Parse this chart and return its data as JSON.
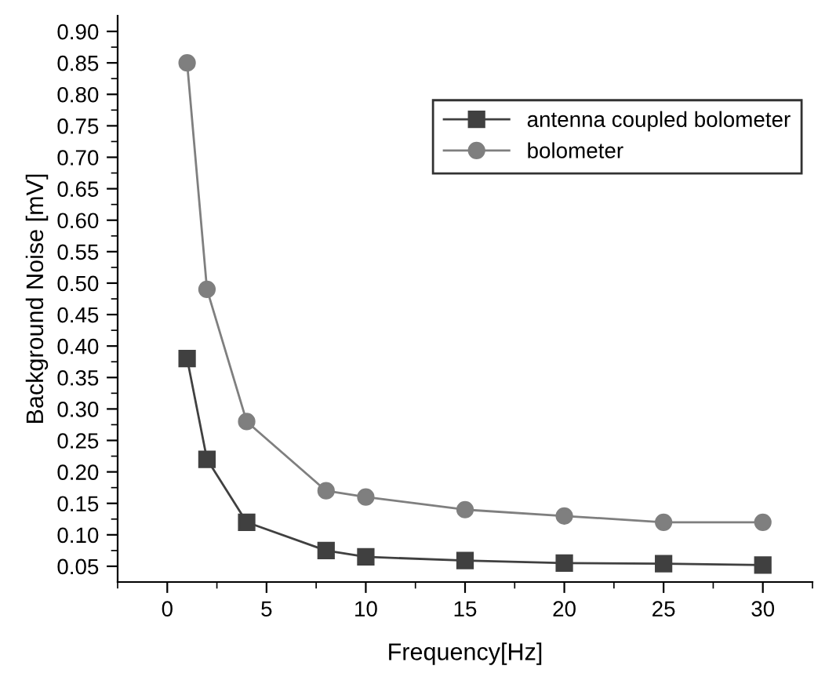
{
  "chart_data": {
    "type": "line",
    "xlabel": "Frequency[Hz]",
    "ylabel": "Background Noise [mV]",
    "xlim": [
      -2.5,
      32.5
    ],
    "ylim": [
      0.025,
      0.925
    ],
    "xticks": [
      {
        "value": -2.5,
        "label": null
      },
      0,
      {
        "value": 2.5,
        "label": null
      },
      5,
      {
        "value": 7.5,
        "label": null
      },
      10,
      {
        "value": 12.5,
        "label": null
      },
      15,
      {
        "value": 17.5,
        "label": null
      },
      20,
      {
        "value": 22.5,
        "label": null
      },
      25,
      {
        "value": 27.5,
        "label": null
      },
      30,
      {
        "value": 32.5,
        "label": null
      }
    ],
    "yticks": [
      {
        "value": 0.05,
        "label": "0.05"
      },
      {
        "value": 0.075,
        "label": null
      },
      {
        "value": 0.1,
        "label": "0.10"
      },
      {
        "value": 0.125,
        "label": null
      },
      {
        "value": 0.15,
        "label": "0.15"
      },
      {
        "value": 0.175,
        "label": null
      },
      {
        "value": 0.2,
        "label": "0.20"
      },
      {
        "value": 0.225,
        "label": null
      },
      {
        "value": 0.25,
        "label": "0.25"
      },
      {
        "value": 0.275,
        "label": null
      },
      {
        "value": 0.3,
        "label": "0.30"
      },
      {
        "value": 0.325,
        "label": null
      },
      {
        "value": 0.35,
        "label": "0.35"
      },
      {
        "value": 0.375,
        "label": null
      },
      {
        "value": 0.4,
        "label": "0.40"
      },
      {
        "value": 0.425,
        "label": null
      },
      {
        "value": 0.45,
        "label": "0.45"
      },
      {
        "value": 0.475,
        "label": null
      },
      {
        "value": 0.5,
        "label": "0.50"
      },
      {
        "value": 0.525,
        "label": null
      },
      {
        "value": 0.55,
        "label": "0.55"
      },
      {
        "value": 0.575,
        "label": null
      },
      {
        "value": 0.6,
        "label": "0.60"
      },
      {
        "value": 0.625,
        "label": null
      },
      {
        "value": 0.65,
        "label": "0.65"
      },
      {
        "value": 0.675,
        "label": null
      },
      {
        "value": 0.7,
        "label": "0.70"
      },
      {
        "value": 0.725,
        "label": null
      },
      {
        "value": 0.75,
        "label": "0.75"
      },
      {
        "value": 0.775,
        "label": null
      },
      {
        "value": 0.8,
        "label": "0.80"
      },
      {
        "value": 0.825,
        "label": null
      },
      {
        "value": 0.85,
        "label": "0.85"
      },
      {
        "value": 0.875,
        "label": null
      },
      {
        "value": 0.9,
        "label": "0.90"
      }
    ],
    "x": [
      1,
      2,
      4,
      8,
      10,
      15,
      20,
      25,
      30
    ],
    "series": [
      {
        "name": "antenna coupled bolometer",
        "color": "#404040",
        "marker": "square",
        "values": [
          0.38,
          0.22,
          0.12,
          0.075,
          0.065,
          0.059,
          0.055,
          0.054,
          0.052
        ]
      },
      {
        "name": "bolometer",
        "color": "#7f7f7f",
        "marker": "circle",
        "values": [
          0.85,
          0.49,
          0.28,
          0.17,
          0.16,
          0.14,
          0.13,
          0.12,
          0.12
        ]
      }
    ],
    "legend": "top right",
    "grid": false,
    "line_style": "solid"
  }
}
